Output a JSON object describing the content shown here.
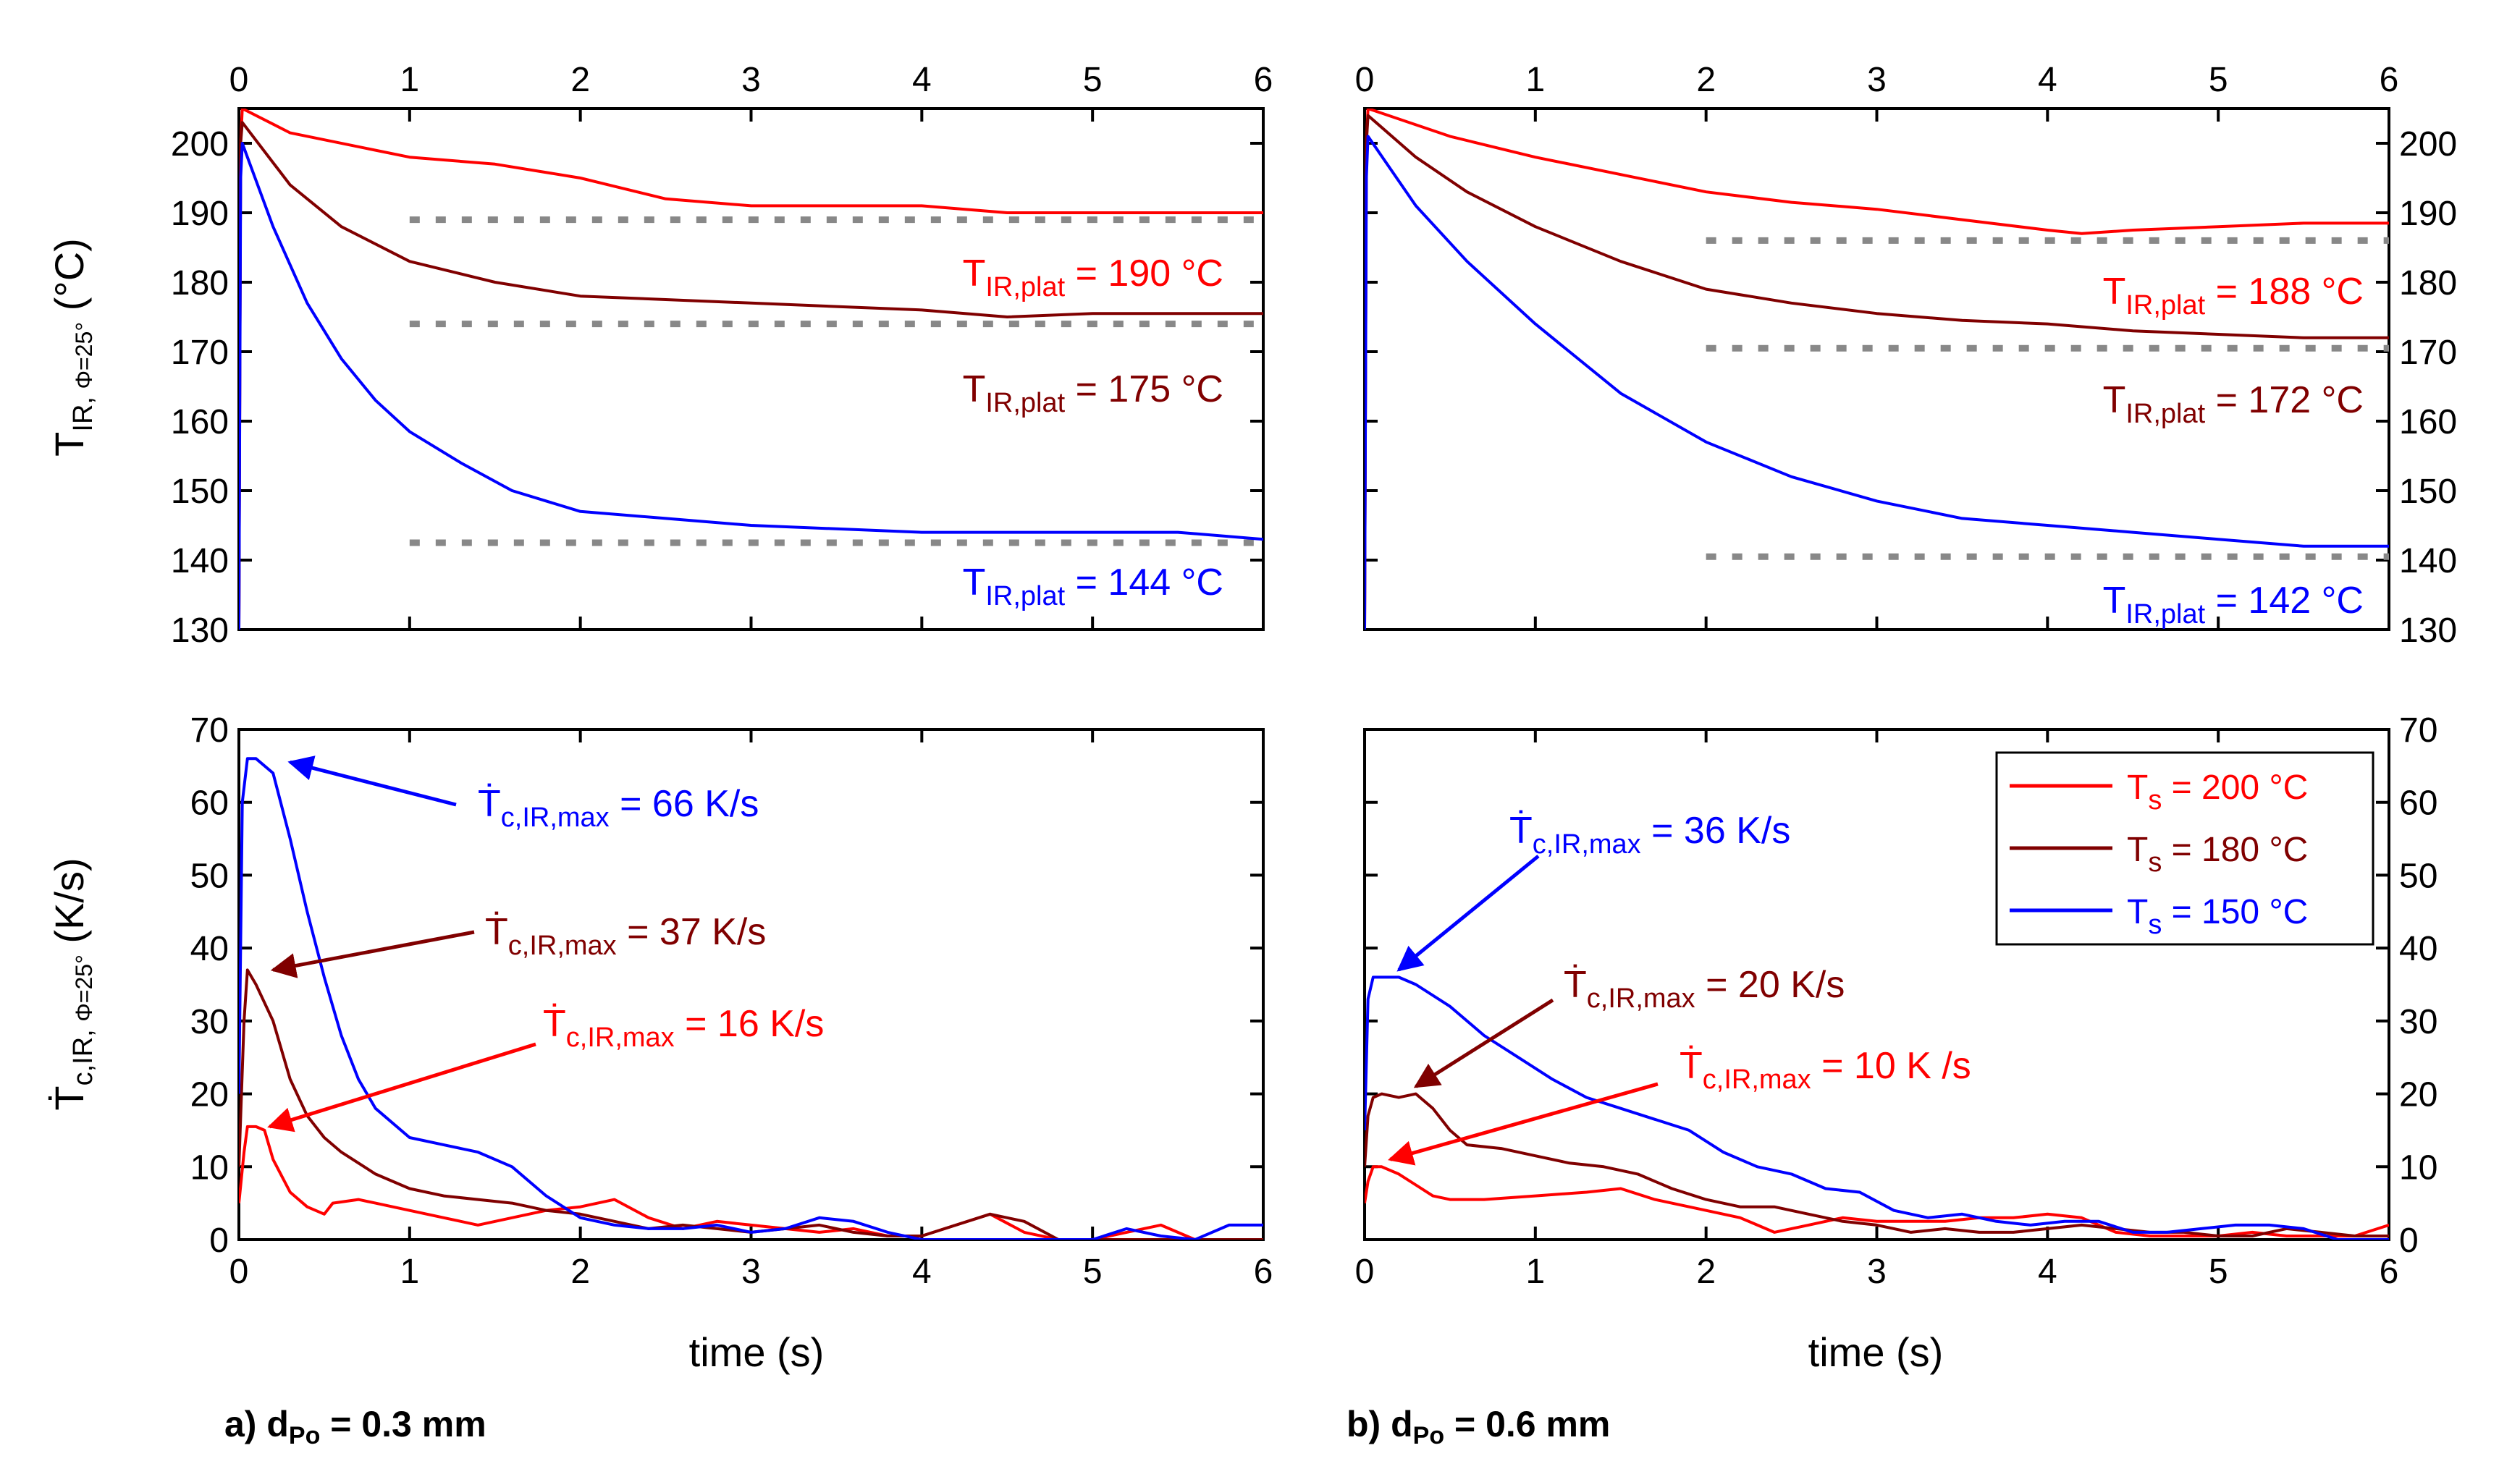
{
  "chart_data": [
    {
      "panel": "a-top",
      "type": "line",
      "caption": "a) dPo = 0.3 mm",
      "xlabel": "",
      "ylabel": "T_IR, Φ=25° (°C)",
      "xlim": [
        0,
        6
      ],
      "ylim": [
        130,
        205
      ],
      "x_ticks": [
        0,
        1,
        2,
        3,
        4,
        5,
        6
      ],
      "y_ticks": [
        130,
        140,
        150,
        160,
        170,
        180,
        190,
        200
      ],
      "top_axis_ticks": [
        0,
        1,
        2,
        3,
        4,
        5,
        6
      ],
      "series": [
        {
          "name": "Ts = 200 °C",
          "color": "#ff0000",
          "x": [
            0,
            0.01,
            0.02,
            0.3,
            1.0,
            1.5,
            2.0,
            2.5,
            3.0,
            3.5,
            4.0,
            4.5,
            5.0,
            5.5,
            6.0
          ],
          "y": [
            130,
            200,
            205,
            201.5,
            198,
            197,
            195,
            192,
            191,
            191,
            191,
            190,
            190,
            190,
            190
          ]
        },
        {
          "name": "Ts = 180 °C",
          "color": "#800000",
          "x": [
            0,
            0.01,
            0.02,
            0.3,
            0.6,
            1.0,
            1.5,
            2.0,
            2.5,
            3.0,
            3.5,
            4.0,
            4.5,
            5.0,
            5.5,
            6.0
          ],
          "y": [
            130,
            200,
            203,
            194,
            188,
            183,
            180,
            178,
            177.5,
            177,
            176.5,
            176,
            175,
            175.5,
            175.5,
            175.5
          ]
        },
        {
          "name": "Ts = 150 °C",
          "color": "#0000ff",
          "x": [
            0,
            0.01,
            0.02,
            0.2,
            0.4,
            0.6,
            0.8,
            1.0,
            1.3,
            1.6,
            2.0,
            2.5,
            3.0,
            3.5,
            4.0,
            4.5,
            5.0,
            5.5,
            6.0
          ],
          "y": [
            130,
            195,
            200,
            188,
            177,
            169,
            163,
            158.5,
            154,
            150,
            147,
            146,
            145,
            144.5,
            144,
            144,
            144,
            144,
            143
          ]
        }
      ],
      "plateau_lines": [
        {
          "y": 189,
          "x": [
            1,
            6
          ]
        },
        {
          "y": 174,
          "x": [
            1,
            6
          ]
        },
        {
          "y": 142.5,
          "x": [
            1,
            6
          ]
        }
      ]
    },
    {
      "panel": "b-top",
      "type": "line",
      "caption": "b) dPo = 0.6 mm",
      "xlabel": "",
      "ylabel": "",
      "xlim": [
        0,
        6
      ],
      "ylim": [
        130,
        205
      ],
      "x_ticks": [
        0,
        1,
        2,
        3,
        4,
        5,
        6
      ],
      "y_ticks": [
        130,
        140,
        150,
        160,
        170,
        180,
        190,
        200
      ],
      "top_axis_ticks": [
        0,
        1,
        2,
        3,
        4,
        5,
        6
      ],
      "series": [
        {
          "name": "Ts = 200 °C",
          "color": "#ff0000",
          "x": [
            0,
            0.01,
            0.02,
            0.5,
            1.0,
            1.5,
            2.0,
            2.5,
            3.0,
            3.5,
            4.0,
            4.2,
            4.5,
            5.0,
            5.5,
            6.0
          ],
          "y": [
            130,
            200,
            205,
            201,
            198,
            195.5,
            193,
            191.5,
            190.5,
            189,
            187.5,
            187,
            187.5,
            188,
            188.5,
            188.5
          ]
        },
        {
          "name": "Ts = 180 °C",
          "color": "#800000",
          "x": [
            0,
            0.01,
            0.02,
            0.3,
            0.6,
            1.0,
            1.5,
            2.0,
            2.5,
            3.0,
            3.5,
            4.0,
            4.5,
            5.0,
            5.5,
            6.0
          ],
          "y": [
            130,
            200,
            204,
            198,
            193,
            188,
            183,
            179,
            177,
            175.5,
            174.5,
            174,
            173,
            172.5,
            172,
            172
          ]
        },
        {
          "name": "Ts = 150 °C",
          "color": "#0000ff",
          "x": [
            0,
            0.01,
            0.02,
            0.3,
            0.6,
            1.0,
            1.5,
            2.0,
            2.5,
            3.0,
            3.5,
            4.0,
            4.5,
            5.0,
            5.5,
            6.0
          ],
          "y": [
            130,
            195,
            201,
            191,
            183,
            174,
            164,
            157,
            152,
            148.5,
            146,
            145,
            144,
            143,
            142,
            142
          ]
        }
      ],
      "plateau_lines": [
        {
          "y": 186,
          "x": [
            2,
            6
          ]
        },
        {
          "y": 170.5,
          "x": [
            2,
            6
          ]
        },
        {
          "y": 140.5,
          "x": [
            2,
            6
          ]
        }
      ]
    },
    {
      "panel": "a-bottom",
      "type": "line",
      "xlabel": "time (s)",
      "ylabel": "Ṫc,IR, Φ=25° (K/s)",
      "xlim": [
        0,
        6
      ],
      "ylim": [
        0,
        70
      ],
      "x_ticks": [
        0,
        1,
        2,
        3,
        4,
        5,
        6
      ],
      "y_ticks": [
        0,
        10,
        20,
        30,
        40,
        50,
        60,
        70
      ],
      "series": [
        {
          "name": "Ts = 200 °C",
          "color": "#ff0000",
          "x": [
            0,
            0.03,
            0.05,
            0.1,
            0.15,
            0.2,
            0.3,
            0.4,
            0.5,
            0.55,
            0.7,
            0.8,
            1.0,
            1.2,
            1.4,
            1.6,
            1.8,
            2.0,
            2.2,
            2.4,
            2.6,
            2.8,
            3.0,
            3.2,
            3.4,
            3.6,
            3.8,
            4.0,
            4.2,
            4.4,
            4.6,
            4.8,
            5.0,
            5.2,
            5.4,
            5.6,
            5.8,
            6.0
          ],
          "y": [
            5,
            12,
            15.5,
            15.5,
            15,
            11,
            6.5,
            4.5,
            3.5,
            5,
            5.5,
            5,
            4,
            3,
            2,
            3,
            4,
            4.5,
            5.5,
            3,
            1.5,
            2.5,
            2,
            1.5,
            1,
            1.5,
            0.5,
            0.5,
            2,
            3.5,
            1,
            0,
            0,
            1,
            2,
            0,
            0,
            0
          ]
        },
        {
          "name": "Ts = 180 °C",
          "color": "#800000",
          "x": [
            0,
            0.03,
            0.05,
            0.1,
            0.2,
            0.3,
            0.4,
            0.5,
            0.6,
            0.8,
            1.0,
            1.2,
            1.4,
            1.6,
            1.8,
            2.0,
            2.2,
            2.4,
            2.6,
            2.8,
            3.0,
            3.2,
            3.4,
            3.6,
            3.8,
            4.0,
            4.2,
            4.4,
            4.6,
            4.8,
            5.0,
            6.0
          ],
          "y": [
            10,
            30,
            37,
            35,
            30,
            22,
            17,
            14,
            12,
            9,
            7,
            6,
            5.5,
            5,
            4,
            3.5,
            2.5,
            1.5,
            2,
            1.5,
            1,
            1.5,
            2,
            1,
            0.5,
            0.5,
            2,
            3.5,
            2.5,
            0,
            0,
            0
          ]
        },
        {
          "name": "Ts = 150 °C",
          "color": "#0000ff",
          "x": [
            0,
            0.02,
            0.05,
            0.1,
            0.2,
            0.3,
            0.4,
            0.5,
            0.6,
            0.7,
            0.8,
            1.0,
            1.2,
            1.4,
            1.6,
            1.8,
            2.0,
            2.2,
            2.4,
            2.6,
            2.8,
            3.0,
            3.2,
            3.4,
            3.6,
            3.8,
            4.0,
            5.0,
            5.2,
            5.4,
            5.6,
            5.8,
            6.0
          ],
          "y": [
            20,
            60,
            66,
            66,
            64,
            55,
            45,
            36,
            28,
            22,
            18,
            14,
            13,
            12,
            10,
            6,
            3,
            2,
            1.5,
            1.5,
            2,
            1,
            1.5,
            3,
            2.5,
            1,
            0,
            0,
            1.5,
            0.5,
            0,
            2,
            2
          ]
        }
      ],
      "annotations": [
        {
          "base": "Ṫ",
          "sub": "c,IR,max",
          "rest": " = 66 K/s",
          "color": "#0000ff",
          "arrow_to": [
            0.3,
            65.5
          ]
        },
        {
          "base": "Ṫ",
          "sub": "c,IR,max",
          "rest": " = 37 K/s",
          "color": "#800000",
          "arrow_to": [
            0.2,
            37
          ]
        },
        {
          "base": "Ṫ",
          "sub": "c,IR,max",
          "rest": " = 16 K/s",
          "color": "#ff0000",
          "arrow_to": [
            0.18,
            15.5
          ]
        }
      ]
    },
    {
      "panel": "b-bottom",
      "type": "line",
      "xlabel": "time (s)",
      "ylabel": "",
      "xlim": [
        0,
        6
      ],
      "ylim": [
        0,
        70
      ],
      "x_ticks": [
        0,
        1,
        2,
        3,
        4,
        5,
        6
      ],
      "y_ticks": [
        0,
        10,
        20,
        30,
        40,
        50,
        60,
        70
      ],
      "series": [
        {
          "name": "Ts = 200 °C",
          "color": "#ff0000",
          "x": [
            0,
            0.02,
            0.05,
            0.1,
            0.2,
            0.3,
            0.4,
            0.5,
            0.7,
            1.0,
            1.3,
            1.5,
            1.7,
            2.0,
            2.2,
            2.4,
            2.6,
            2.8,
            3.0,
            3.2,
            3.4,
            3.6,
            3.8,
            4.0,
            4.2,
            4.4,
            4.6,
            4.8,
            5.0,
            5.2,
            5.4,
            5.6,
            5.8,
            6.0
          ],
          "y": [
            5,
            8,
            10,
            10,
            9,
            7.5,
            6,
            5.5,
            5.5,
            6,
            6.5,
            7,
            5.5,
            4,
            3,
            1,
            2,
            3,
            2.5,
            2.5,
            2.5,
            3,
            3,
            3.5,
            3,
            1,
            0.5,
            0.5,
            0.5,
            1,
            0.5,
            0.5,
            0.5,
            2
          ]
        },
        {
          "name": "Ts = 180 °C",
          "color": "#800000",
          "x": [
            0,
            0.02,
            0.05,
            0.1,
            0.2,
            0.3,
            0.4,
            0.5,
            0.6,
            0.8,
            1.0,
            1.2,
            1.4,
            1.6,
            1.8,
            2.0,
            2.2,
            2.4,
            2.6,
            2.8,
            3.0,
            3.2,
            3.4,
            3.6,
            3.8,
            4.0,
            4.2,
            4.4,
            4.6,
            4.8,
            5.0,
            5.2,
            5.4,
            5.6,
            5.8,
            6.0
          ],
          "y": [
            10,
            17,
            19.5,
            20,
            19.5,
            20,
            18,
            15,
            13,
            12.5,
            11.5,
            10.5,
            10,
            9,
            7,
            5.5,
            4.5,
            4.5,
            3.5,
            2.5,
            2,
            1,
            1.5,
            1,
            1,
            1.5,
            2,
            1.5,
            1,
            1,
            0.5,
            0.5,
            1.5,
            1,
            0.5,
            0.5
          ]
        },
        {
          "name": "Ts = 150 °C",
          "color": "#0000ff",
          "x": [
            0,
            0.02,
            0.05,
            0.1,
            0.2,
            0.3,
            0.5,
            0.7,
            0.9,
            1.1,
            1.3,
            1.5,
            1.7,
            1.9,
            2.1,
            2.3,
            2.5,
            2.7,
            2.9,
            3.1,
            3.3,
            3.5,
            3.7,
            3.9,
            4.1,
            4.3,
            4.5,
            4.7,
            4.9,
            5.1,
            5.3,
            5.5,
            5.7,
            5.9,
            6.0
          ],
          "y": [
            15,
            33,
            36,
            36,
            36,
            35,
            32,
            28,
            25,
            22,
            19.5,
            18,
            16.5,
            15,
            12,
            10,
            9,
            7,
            6.5,
            4,
            3,
            3.5,
            2.5,
            2,
            2.5,
            2.5,
            1,
            1,
            1.5,
            2,
            2,
            1.5,
            0,
            0,
            0
          ]
        }
      ],
      "annotations": [
        {
          "base": "Ṫ",
          "sub": "c,IR,max",
          "rest": " = 36 K/s",
          "color": "#0000ff",
          "arrow_to": [
            0.2,
            37
          ]
        },
        {
          "base": "Ṫ",
          "sub": "c,IR,max",
          "rest": " = 20 K/s",
          "color": "#800000",
          "arrow_to": [
            0.3,
            21
          ]
        },
        {
          "base": "Ṫ",
          "sub": "c,IR,max",
          "rest": " = 10 K /s",
          "color": "#ff0000",
          "arrow_to": [
            0.15,
            11
          ]
        }
      ],
      "legend": {
        "placement": "top-right",
        "entries": [
          {
            "base": "T",
            "sub": "s",
            "rest": " = 200 °C",
            "color": "#ff0000"
          },
          {
            "base": "T",
            "sub": "s",
            "rest": " = 180 °C",
            "color": "#800000"
          },
          {
            "base": "T",
            "sub": "s",
            "rest": " = 150 °C",
            "color": "#0000ff"
          }
        ]
      }
    }
  ],
  "plateau_labels": {
    "a": [
      {
        "base": "T",
        "sub": "IR,plat",
        "rest": " = 190 °C",
        "color": "#ff0000"
      },
      {
        "base": "T",
        "sub": "IR,plat",
        "rest": " = 175 °C",
        "color": "#800000"
      },
      {
        "base": "T",
        "sub": "IR,plat",
        "rest": " = 144 °C",
        "color": "#0000ff"
      }
    ],
    "b": [
      {
        "base": "T",
        "sub": "IR,plat",
        "rest": " = 188 °C",
        "color": "#ff0000"
      },
      {
        "base": "T",
        "sub": "IR,plat",
        "rest": " = 172 °C",
        "color": "#800000"
      },
      {
        "base": "T",
        "sub": "IR,plat",
        "rest": " = 142 °C",
        "color": "#0000ff"
      }
    ]
  },
  "axis_titles": {
    "top_y": {
      "base": "T",
      "sub": "IR, ",
      "sub2": "Φ=25°",
      "rest": " (°C)"
    },
    "bottom_y": {
      "base": "Ṫ",
      "sub": "c,IR, ",
      "sub2": "Φ=25°",
      "rest": " (K/s)"
    },
    "x": "time (s)"
  },
  "captions": {
    "a": {
      "prefix": "a) d",
      "sub": "Po",
      "rest": " = 0.3 mm"
    },
    "b": {
      "prefix": "b) d",
      "sub": "Po",
      "rest": " = 0.6 mm"
    }
  },
  "style": {
    "plateau_line_color": "#888888",
    "axis_color": "#000000"
  }
}
